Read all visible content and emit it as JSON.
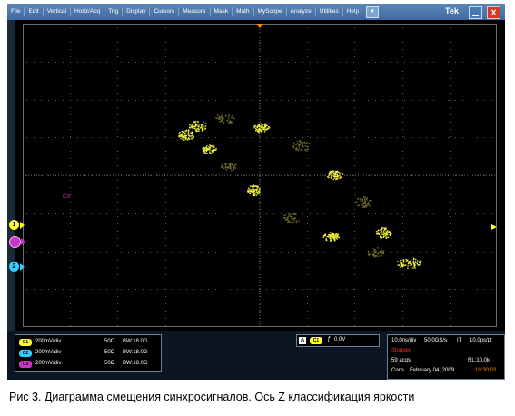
{
  "menu": {
    "items": [
      "File",
      "Edit",
      "Vertical",
      "Horiz/Acq",
      "Trig",
      "Display",
      "Cursors",
      "Measure",
      "Mask",
      "Math",
      "MyScope",
      "Analyze",
      "Utilities",
      "Help"
    ],
    "dropdown_glyph": "▼",
    "brand": "Tek",
    "close_glyph": "X"
  },
  "screen": {
    "cursor_label": "CX",
    "marker_1": "1",
    "marker_2": "2",
    "colors": {
      "ch1": "#ffff33",
      "ch2": "#33ccff",
      "ch3": "#cc33cc",
      "grid": "#6a6a6a",
      "trig": "#ff8800"
    }
  },
  "channels": [
    {
      "badge": "C1",
      "scale": "200mV/div",
      "impedance": "50Ω",
      "bandwidth": "BW:18.0G",
      "color": "#ffff33"
    },
    {
      "badge": "C2",
      "scale": "200mV/div",
      "impedance": "50Ω",
      "bandwidth": "BW:18.0G",
      "color": "#33ccff"
    },
    {
      "badge": "C3",
      "scale": "200mV/div",
      "impedance": "50Ω",
      "bandwidth": "BW:18.0G",
      "color": "#cc33cc"
    }
  ],
  "trigger": {
    "mode": "A",
    "source": "C1",
    "slope_glyph": "ƒ",
    "level": "0.0V"
  },
  "acquisition": {
    "timebase": "10.0ns/div",
    "sample_rate": "50.0GS/s",
    "interp": "IT",
    "resolution": "10.0ps/pt",
    "state": "Stopped",
    "acqs": "59 acqs",
    "record_length": "RL:10.0k",
    "mode": "Cons",
    "date": "February 04, 2009",
    "time": "10:30:03"
  },
  "caption": "Рис 3. Диаграмма смещения синхросигналов. Ось Z классификация яркости"
}
